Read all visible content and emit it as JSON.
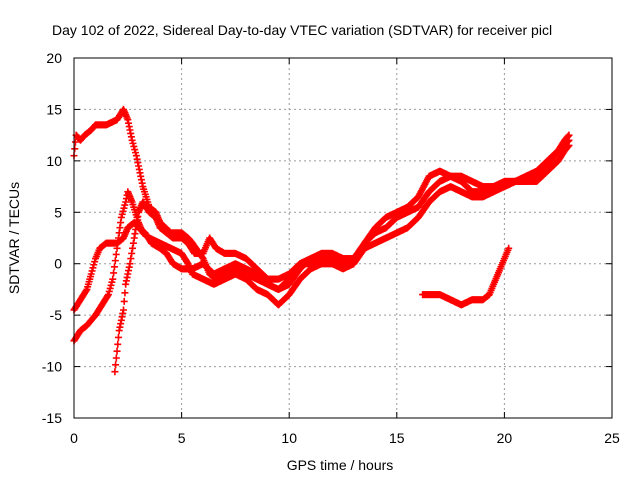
{
  "chart_data": {
    "type": "scatter",
    "title": "Day 102 of 2022, Sidereal Day-to-day VTEC variation (SDTVAR) for receiver picl",
    "xlabel": "GPS time / hours",
    "ylabel": "SDTVAR / TECUs",
    "xlim": [
      0,
      25
    ],
    "ylim": [
      -15,
      20
    ],
    "xticks": [
      "0",
      "5",
      "10",
      "15",
      "20",
      "25"
    ],
    "yticks": [
      "-15",
      "-10",
      "-5",
      "0",
      "5",
      "10",
      "15",
      "20"
    ],
    "grid": true,
    "marker": "+",
    "color": "#ff0000",
    "series": [
      {
        "name": "arc-1",
        "points": [
          [
            0.0,
            10.5
          ],
          [
            0.1,
            12.5
          ],
          [
            0.3,
            12.0
          ],
          [
            0.5,
            12.5
          ],
          [
            0.8,
            13.0
          ],
          [
            1.0,
            13.5
          ],
          [
            1.5,
            13.5
          ],
          [
            2.0,
            14.0
          ],
          [
            2.3,
            15.0
          ],
          [
            2.5,
            14.0
          ],
          [
            2.7,
            12.0
          ],
          [
            2.9,
            10.5
          ],
          [
            3.0,
            9.5
          ],
          [
            3.2,
            7.5
          ],
          [
            3.5,
            5.5
          ],
          [
            3.8,
            5.0
          ],
          [
            4.0,
            4.0
          ],
          [
            4.5,
            3.0
          ],
          [
            5.0,
            3.0
          ],
          [
            5.3,
            2.5
          ],
          [
            5.5,
            2.0
          ],
          [
            6.0,
            0.5
          ],
          [
            6.3,
            -1.0
          ],
          [
            6.6,
            -1.5
          ],
          [
            7.0,
            -1.0
          ],
          [
            7.5,
            -0.5
          ],
          [
            8.0,
            -1.0
          ],
          [
            8.5,
            -1.5
          ],
          [
            9.0,
            -2.0
          ],
          [
            9.5,
            -2.5
          ],
          [
            10.0,
            -1.5
          ],
          [
            10.5,
            0.0
          ],
          [
            11.0,
            0.0
          ],
          [
            11.5,
            0.5
          ],
          [
            12.0,
            0.5
          ],
          [
            12.5,
            0.0
          ],
          [
            13.0,
            0.0
          ],
          [
            13.5,
            2.0
          ],
          [
            14.0,
            3.5
          ],
          [
            14.5,
            4.5
          ],
          [
            15.0,
            5.0
          ],
          [
            15.5,
            5.5
          ],
          [
            16.0,
            6.5
          ],
          [
            16.5,
            8.5
          ],
          [
            17.0,
            9.0
          ],
          [
            17.5,
            8.5
          ],
          [
            18.0,
            8.0
          ],
          [
            18.5,
            7.0
          ],
          [
            19.0,
            7.0
          ],
          [
            19.5,
            7.5
          ],
          [
            20.0,
            8.0
          ],
          [
            20.5,
            8.0
          ],
          [
            21.0,
            8.0
          ],
          [
            21.5,
            8.5
          ],
          [
            22.0,
            9.5
          ],
          [
            22.5,
            11.0
          ],
          [
            22.8,
            12.0
          ],
          [
            23.0,
            12.5
          ]
        ]
      },
      {
        "name": "arc-2",
        "points": [
          [
            0.0,
            -7.5
          ],
          [
            0.3,
            -6.5
          ],
          [
            0.6,
            -6.0
          ],
          [
            1.0,
            -5.0
          ],
          [
            1.3,
            -4.0
          ],
          [
            1.6,
            -3.0
          ],
          [
            1.8,
            -1.5
          ],
          [
            2.0,
            1.5
          ],
          [
            2.2,
            4.5
          ],
          [
            2.4,
            6.0
          ],
          [
            2.5,
            7.0
          ],
          [
            2.7,
            6.0
          ],
          [
            3.0,
            4.0
          ],
          [
            3.2,
            3.0
          ],
          [
            3.5,
            2.5
          ],
          [
            4.0,
            2.0
          ],
          [
            4.5,
            1.5
          ],
          [
            5.0,
            1.0
          ],
          [
            5.3,
            0.0
          ],
          [
            5.5,
            -1.0
          ],
          [
            6.0,
            -1.5
          ],
          [
            6.5,
            -2.0
          ],
          [
            7.0,
            -1.5
          ],
          [
            7.5,
            -1.0
          ],
          [
            8.0,
            -1.5
          ],
          [
            8.5,
            -2.5
          ],
          [
            9.0,
            -3.0
          ],
          [
            9.5,
            -4.0
          ],
          [
            10.0,
            -3.0
          ],
          [
            10.5,
            -1.5
          ],
          [
            11.0,
            -0.5
          ],
          [
            11.5,
            0.0
          ],
          [
            12.0,
            0.0
          ],
          [
            12.5,
            -0.5
          ],
          [
            13.0,
            0.0
          ],
          [
            13.5,
            1.5
          ],
          [
            14.0,
            2.0
          ],
          [
            14.5,
            2.5
          ],
          [
            15.0,
            3.0
          ],
          [
            15.5,
            3.5
          ],
          [
            16.0,
            4.5
          ],
          [
            16.5,
            6.0
          ],
          [
            17.0,
            7.0
          ],
          [
            17.5,
            7.5
          ],
          [
            18.0,
            7.0
          ],
          [
            18.5,
            6.5
          ],
          [
            19.0,
            6.5
          ],
          [
            19.5,
            7.0
          ],
          [
            20.0,
            7.5
          ],
          [
            20.5,
            8.0
          ],
          [
            21.0,
            8.0
          ],
          [
            21.5,
            8.0
          ],
          [
            22.0,
            9.0
          ],
          [
            22.5,
            10.0
          ],
          [
            22.8,
            11.0
          ],
          [
            23.0,
            11.5
          ]
        ]
      },
      {
        "name": "arc-3",
        "points": [
          [
            0.0,
            -4.5
          ],
          [
            0.3,
            -3.5
          ],
          [
            0.6,
            -2.5
          ],
          [
            0.8,
            -1.0
          ],
          [
            1.0,
            0.5
          ],
          [
            1.2,
            1.5
          ],
          [
            1.5,
            2.0
          ],
          [
            2.0,
            2.0
          ],
          [
            2.3,
            2.5
          ],
          [
            2.5,
            3.5
          ],
          [
            2.8,
            4.0
          ],
          [
            3.0,
            3.5
          ],
          [
            3.3,
            3.0
          ],
          [
            3.6,
            2.0
          ],
          [
            4.0,
            1.5
          ],
          [
            4.3,
            1.0
          ],
          [
            4.6,
            0.0
          ],
          [
            5.0,
            -0.5
          ],
          [
            5.5,
            -0.5
          ],
          [
            6.0,
            0.0
          ],
          [
            6.5,
            -1.0
          ],
          [
            7.0,
            -0.5
          ],
          [
            7.5,
            0.0
          ],
          [
            8.0,
            -0.5
          ],
          [
            8.5,
            -1.0
          ],
          [
            9.0,
            -2.0
          ],
          [
            9.5,
            -2.5
          ],
          [
            10.0,
            -2.0
          ],
          [
            10.5,
            -0.5
          ],
          [
            11.0,
            0.5
          ],
          [
            11.5,
            1.0
          ],
          [
            12.0,
            1.0
          ],
          [
            12.5,
            0.5
          ],
          [
            13.0,
            0.5
          ],
          [
            13.5,
            2.0
          ],
          [
            14.0,
            3.0
          ],
          [
            14.5,
            3.5
          ],
          [
            15.0,
            4.5
          ],
          [
            15.5,
            5.0
          ],
          [
            16.0,
            5.5
          ],
          [
            16.5,
            7.0
          ],
          [
            17.0,
            8.0
          ],
          [
            17.5,
            8.5
          ],
          [
            18.0,
            8.5
          ],
          [
            18.5,
            8.0
          ],
          [
            19.0,
            7.5
          ],
          [
            19.5,
            7.5
          ],
          [
            20.0,
            7.5
          ],
          [
            20.5,
            8.0
          ],
          [
            21.0,
            8.5
          ],
          [
            21.5,
            9.0
          ],
          [
            22.0,
            10.0
          ],
          [
            22.5,
            11.0
          ],
          [
            23.0,
            12.0
          ]
        ]
      },
      {
        "name": "arc-4",
        "points": [
          [
            1.9,
            -10.5
          ],
          [
            2.0,
            -8.5
          ],
          [
            2.1,
            -6.5
          ],
          [
            2.2,
            -5.5
          ],
          [
            2.3,
            -4.5
          ],
          [
            2.4,
            -2.0
          ],
          [
            2.6,
            0.0
          ],
          [
            2.8,
            2.5
          ],
          [
            3.0,
            5.0
          ],
          [
            3.2,
            6.0
          ],
          [
            3.5,
            5.0
          ],
          [
            3.8,
            4.5
          ],
          [
            4.0,
            3.5
          ],
          [
            4.3,
            3.0
          ],
          [
            4.6,
            2.5
          ],
          [
            5.0,
            2.5
          ],
          [
            5.3,
            2.0
          ],
          [
            5.6,
            1.0
          ],
          [
            6.0,
            1.0
          ],
          [
            6.3,
            2.5
          ],
          [
            6.6,
            1.5
          ],
          [
            7.0,
            1.0
          ],
          [
            7.5,
            1.0
          ],
          [
            8.0,
            0.5
          ],
          [
            8.5,
            -0.5
          ],
          [
            9.0,
            -1.5
          ],
          [
            9.5,
            -1.5
          ],
          [
            10.0,
            -1.0
          ],
          [
            10.5,
            0.0
          ],
          [
            11.0,
            0.5
          ],
          [
            11.5,
            0.5
          ],
          [
            12.0,
            0.0
          ],
          [
            12.5,
            0.5
          ]
        ]
      },
      {
        "name": "arc-5",
        "points": [
          [
            16.2,
            -3.0
          ],
          [
            16.5,
            -3.0
          ],
          [
            17.0,
            -3.0
          ],
          [
            17.5,
            -3.5
          ],
          [
            18.0,
            -4.0
          ],
          [
            18.5,
            -3.5
          ],
          [
            19.0,
            -3.5
          ],
          [
            19.3,
            -3.0
          ],
          [
            19.5,
            -2.0
          ],
          [
            19.8,
            -0.5
          ],
          [
            20.0,
            0.5
          ],
          [
            20.2,
            1.5
          ]
        ]
      }
    ]
  }
}
